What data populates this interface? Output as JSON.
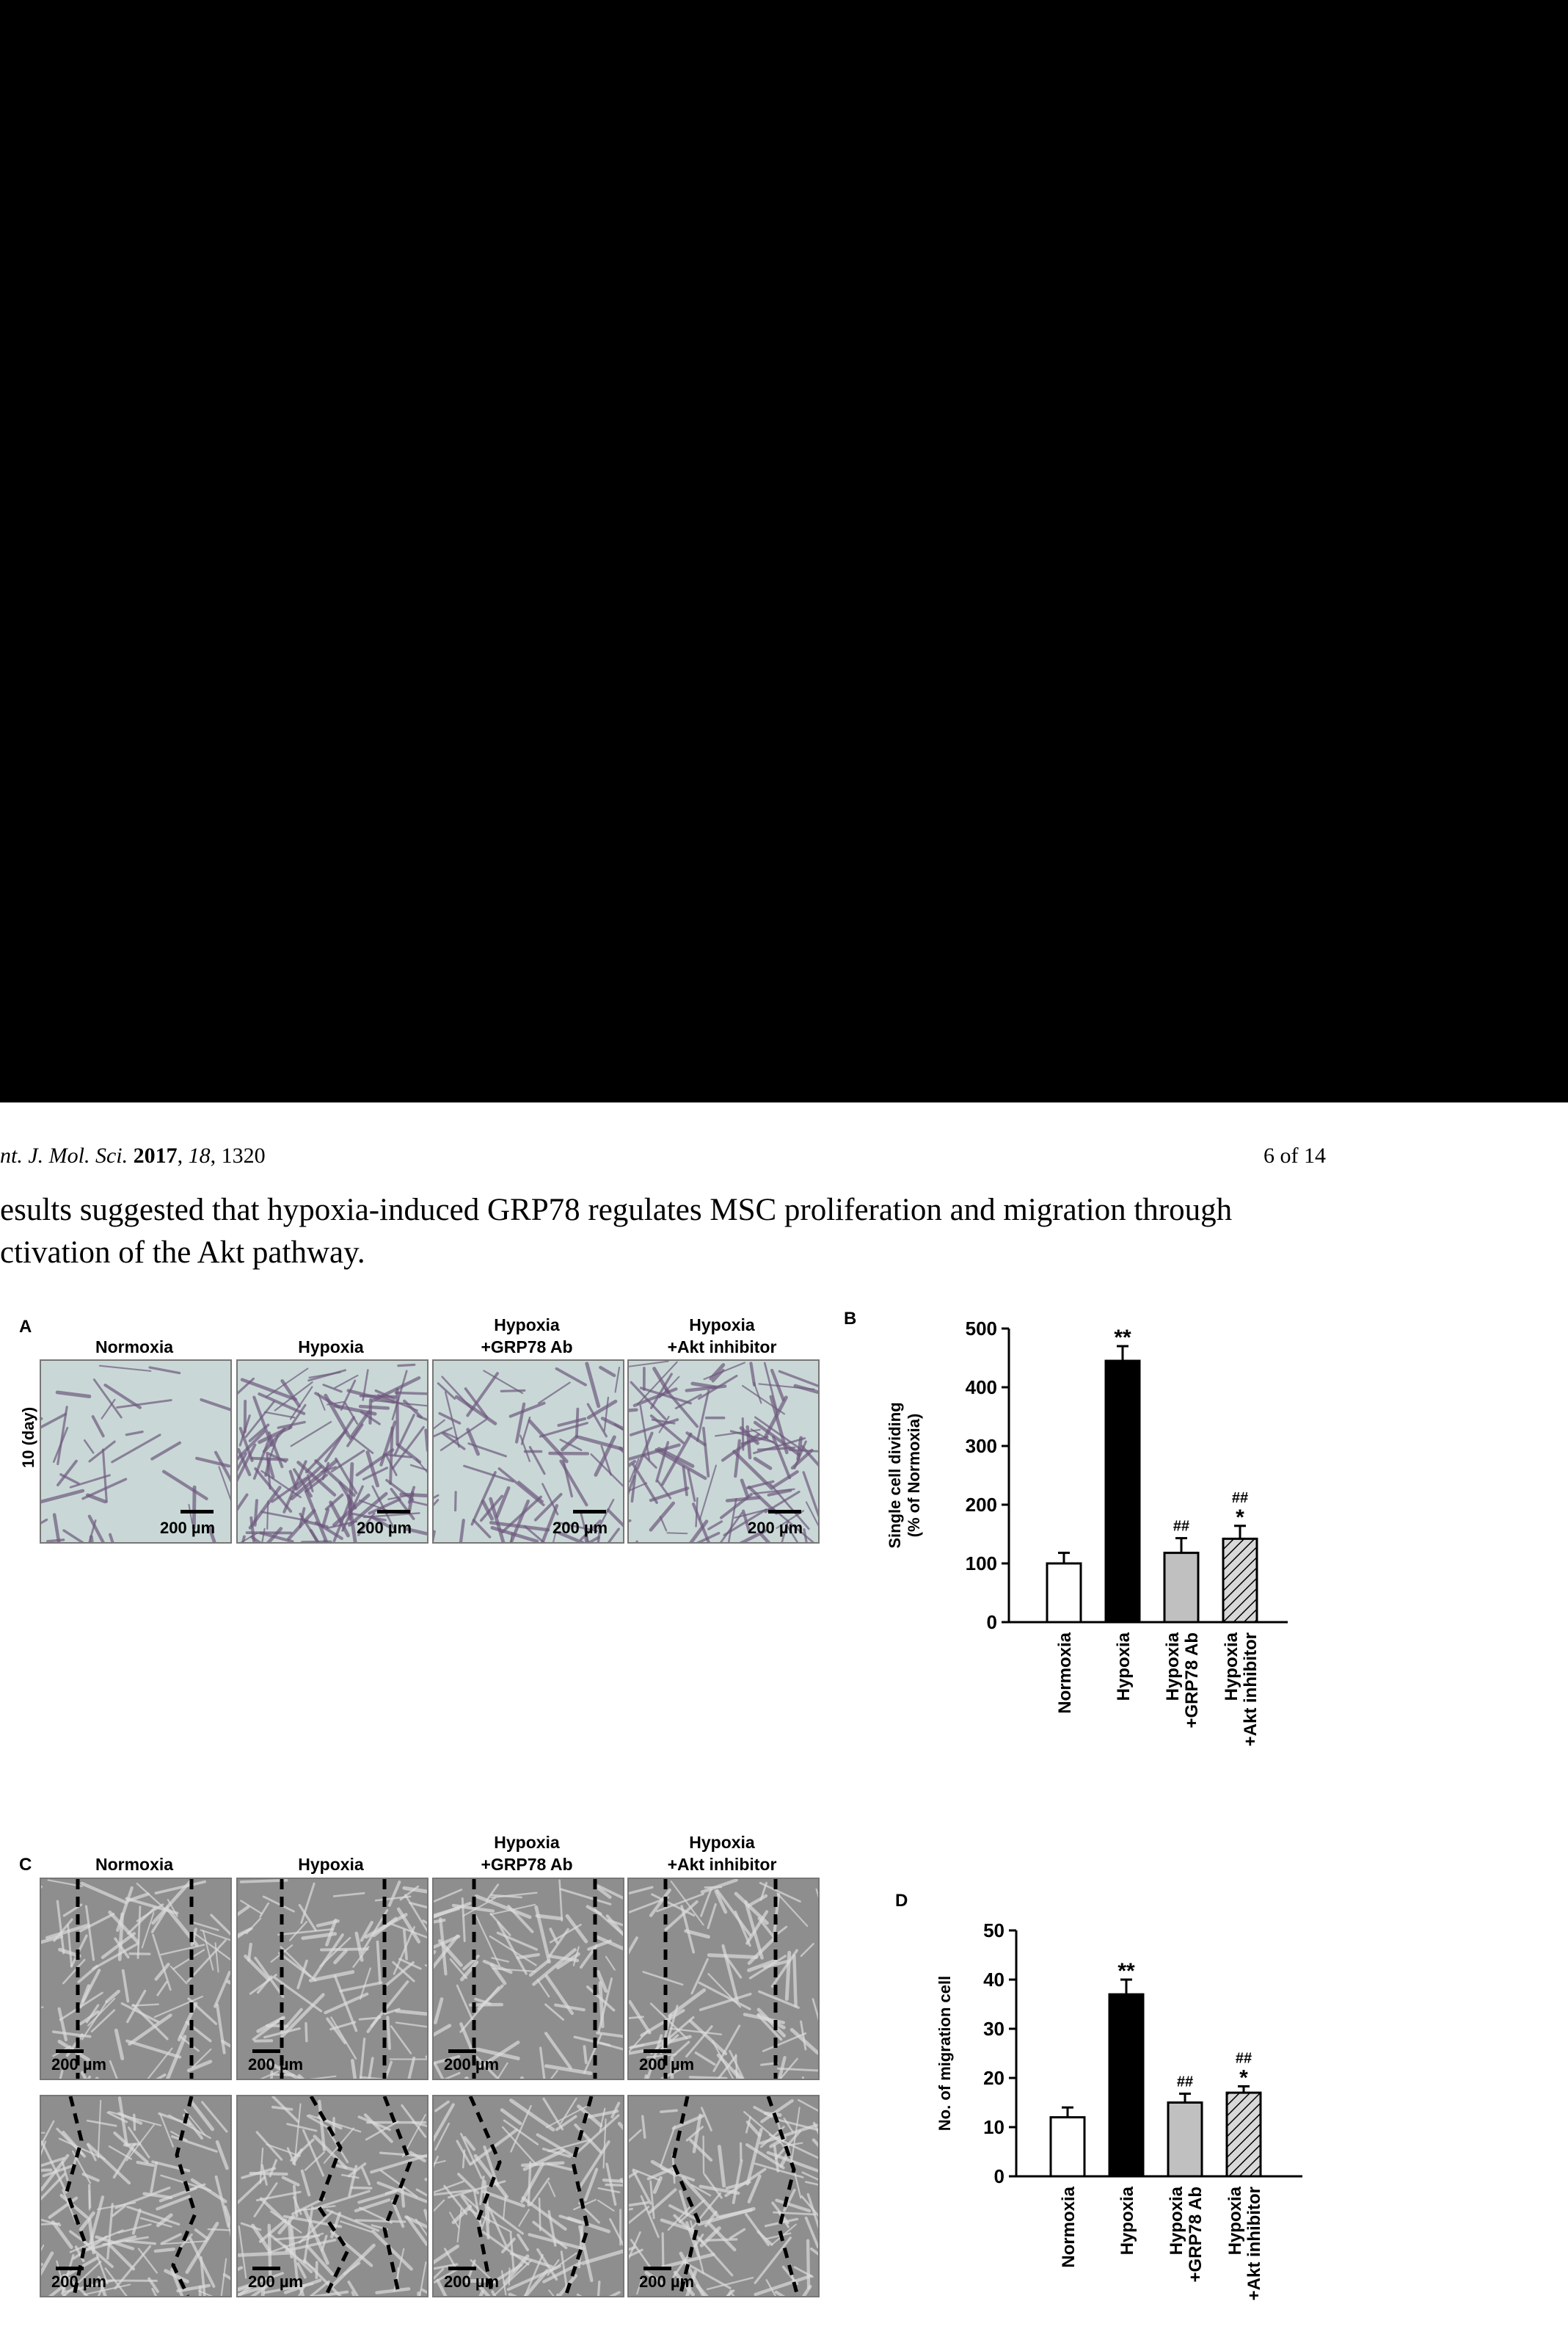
{
  "header": {
    "journal_prefix": "nt. J. Mol. Sci.",
    "year": "2017",
    "volume": "18",
    "article": "1320",
    "page": "6 of 14"
  },
  "paragraph": {
    "line1": "esults suggested that hypoxia-induced GRP78 regulates MSC proliferation and migration through",
    "line2": "ctivation of the Akt pathway."
  },
  "figure": {
    "panel_a": {
      "letter": "A",
      "row_label": "10 (day)",
      "columns": [
        {
          "line1": "",
          "line2": "Normoxia"
        },
        {
          "line1": "",
          "line2": "Hypoxia"
        },
        {
          "line1": "Hypoxia",
          "line2": "+GRP78 Ab"
        },
        {
          "line1": "Hypoxia",
          "line2": "+Akt inhibitor"
        }
      ],
      "scale_label": "200 µm"
    },
    "panel_b": {
      "letter": "B"
    },
    "panel_c": {
      "letter": "C",
      "columns": [
        {
          "line1": "",
          "line2": "Normoxia"
        },
        {
          "line1": "",
          "line2": "Hypoxia"
        },
        {
          "line1": "Hypoxia",
          "line2": "+GRP78 Ab"
        },
        {
          "line1": "Hypoxia",
          "line2": "+Akt inhibitor"
        }
      ],
      "scale_label": "200 µm"
    },
    "panel_d": {
      "letter": "D"
    }
  },
  "chart_data": [
    {
      "panel": "B",
      "type": "bar",
      "categories": [
        [
          "Normoxia"
        ],
        [
          "Hypoxia"
        ],
        [
          "Hypoxia",
          "+GRP78 Ab"
        ],
        [
          "Hypoxia",
          "+Akt inhibitor"
        ]
      ],
      "values": [
        100,
        445,
        118,
        142
      ],
      "errors": [
        18,
        25,
        25,
        22
      ],
      "annotations": [
        "",
        "**",
        "##",
        "##\n*"
      ],
      "ylabel": [
        "Single cell dividing",
        "(% of Normoxia)"
      ],
      "yticks": [
        0,
        100,
        200,
        300,
        400,
        500
      ],
      "ylim": [
        0,
        500
      ],
      "fills": [
        "#ffffff",
        "#000000",
        "#c0c0c0",
        "hatch"
      ]
    },
    {
      "panel": "D",
      "type": "bar",
      "categories": [
        [
          "Normoxia"
        ],
        [
          "Hypoxia"
        ],
        [
          "Hypoxia",
          "+GRP78 Ab"
        ],
        [
          "Hypoxia",
          "+Akt inhibitor"
        ]
      ],
      "values": [
        12,
        37,
        15,
        17
      ],
      "errors": [
        2,
        3,
        1.8,
        1.3
      ],
      "annotations": [
        "",
        "**",
        "##",
        "##\n*"
      ],
      "ylabel": [
        "No. of migration cell"
      ],
      "yticks": [
        0,
        10,
        20,
        30,
        40,
        50
      ],
      "ylim": [
        0,
        50
      ],
      "fills": [
        "#ffffff",
        "#000000",
        "#c0c0c0",
        "hatch"
      ]
    }
  ]
}
